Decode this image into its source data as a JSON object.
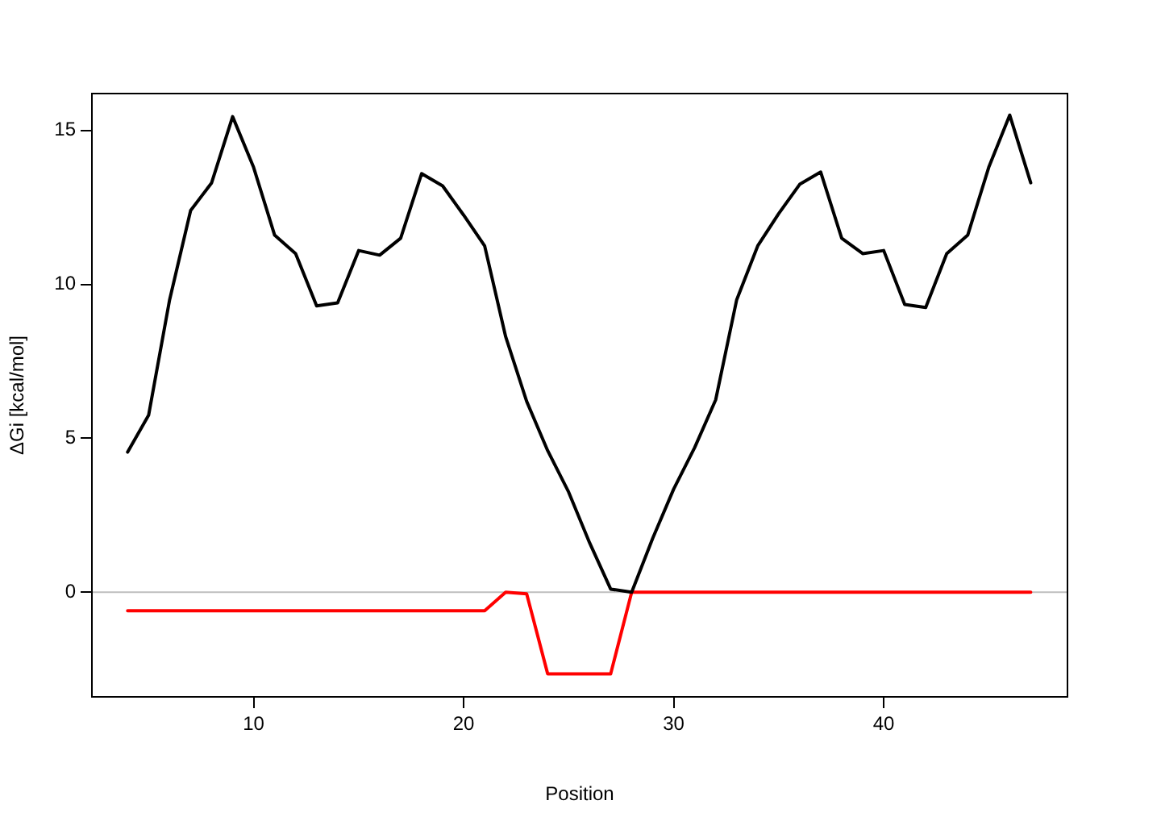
{
  "chart_data": {
    "type": "line",
    "xlabel": "Position",
    "ylabel": "ΔGi [kcal/mol]",
    "x": [
      4,
      5,
      6,
      7,
      8,
      9,
      10,
      11,
      12,
      13,
      14,
      15,
      16,
      17,
      18,
      19,
      20,
      21,
      22,
      23,
      24,
      25,
      26,
      27,
      28,
      29,
      30,
      31,
      32,
      33,
      34,
      35,
      36,
      37,
      38,
      39,
      40,
      41,
      42,
      43,
      44,
      45,
      46,
      47
    ],
    "series": [
      {
        "color": "#000000",
        "values": [
          4.55,
          5.75,
          9.5,
          12.4,
          13.3,
          15.45,
          13.8,
          11.6,
          11.0,
          9.3,
          9.4,
          11.1,
          10.95,
          11.5,
          13.6,
          13.2,
          12.25,
          11.25,
          8.3,
          6.2,
          4.6,
          3.25,
          1.6,
          0.1,
          0,
          1.75,
          3.35,
          4.7,
          6.25,
          9.5,
          11.25,
          12.3,
          13.25,
          13.65,
          11.5,
          11.0,
          11.1,
          9.35,
          9.25,
          11.0,
          11.6,
          13.8,
          15.5,
          13.3
        ]
      },
      {
        "color": "#ff0000",
        "values": [
          -0.6,
          -0.6,
          -0.6,
          -0.6,
          -0.6,
          -0.6,
          -0.6,
          -0.6,
          -0.6,
          -0.6,
          -0.6,
          -0.6,
          -0.6,
          -0.6,
          -0.6,
          -0.6,
          -0.6,
          -0.6,
          0,
          -0.05,
          -2.65,
          -2.65,
          -2.65,
          -2.65,
          0,
          0,
          0,
          0,
          0,
          0,
          0,
          0,
          0,
          0,
          0,
          0,
          0,
          0,
          0,
          0,
          0,
          0,
          0,
          0
        ]
      }
    ],
    "xlim": [
      2.3,
      48.75
    ],
    "xticks": [
      10,
      20,
      30,
      40
    ],
    "ylim": [
      -3.4,
      16.2
    ],
    "yticks": [
      0,
      5,
      10,
      15
    ],
    "ref_lines": [
      {
        "axis": "y",
        "value": 0,
        "color": "#bebebe"
      }
    ],
    "grid": false,
    "legend": false,
    "marker": "none",
    "line_style": "solid"
  }
}
